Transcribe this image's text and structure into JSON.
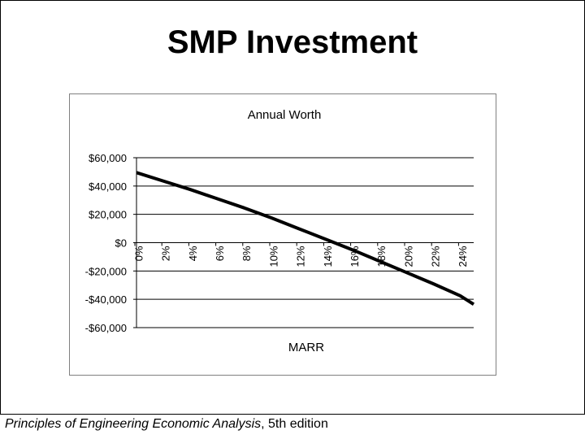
{
  "slide": {
    "title": "SMP Investment",
    "footer_italic": "Principles of Engineering Economic Analysis",
    "footer_rest": ", 5th edition"
  },
  "chart_data": {
    "type": "line",
    "title": "Annual Worth",
    "xlabel": "MARR",
    "ylabel": "",
    "x_ticks": [
      "0%",
      "2%",
      "4%",
      "6%",
      "8%",
      "10%",
      "12%",
      "14%",
      "16%",
      "18%",
      "20%",
      "22%",
      "24%"
    ],
    "y_ticks": [
      "$60,000",
      "$40,000",
      "$20,000",
      "$0",
      "-$20,000",
      "-$40,000",
      "-$60,000"
    ],
    "xlim": [
      0,
      0.25
    ],
    "ylim": [
      -60000,
      60000
    ],
    "grid": "horizontal",
    "legend": "none",
    "series": [
      {
        "color": "#000000",
        "x": [
          0,
          0.02,
          0.04,
          0.06,
          0.08,
          0.1,
          0.12,
          0.14,
          0.16,
          0.18,
          0.2,
          0.22,
          0.24,
          0.25
        ],
        "y": [
          49500,
          43500,
          37500,
          31000,
          24500,
          17500,
          10000,
          2500,
          -5000,
          -13000,
          -21000,
          -29000,
          -37500,
          -43500
        ]
      }
    ]
  }
}
